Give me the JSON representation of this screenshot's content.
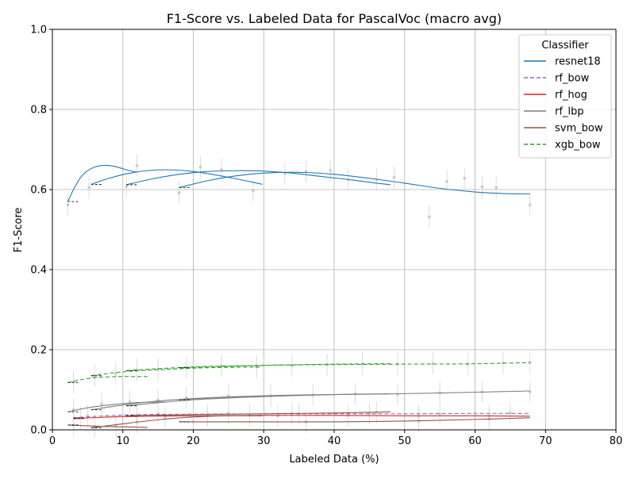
{
  "chart_data": {
    "type": "line",
    "title": "F1-Score vs. Labeled Data for PascalVoc (macro avg)",
    "xlabel": "Labeled Data (%)",
    "ylabel": "F1-Score",
    "xlim": [
      0,
      80
    ],
    "ylim": [
      0,
      1.0
    ],
    "x_ticks": [
      "0",
      "10",
      "20",
      "30",
      "40",
      "50",
      "60",
      "70",
      "80"
    ],
    "y_ticks": [
      "0.0",
      "0.2",
      "0.4",
      "0.6",
      "0.8",
      "1.0"
    ],
    "grid": true,
    "legend": {
      "title": "Classifier",
      "position": "top-right"
    },
    "series": [
      {
        "name": "resnet18",
        "color": "#1f77b4",
        "dash": "solid",
        "curves": [
          [
            [
              2.2,
              0.57
            ],
            [
              3,
              0.6
            ],
            [
              4,
              0.63
            ],
            [
              5,
              0.647
            ],
            [
              6,
              0.656
            ],
            [
              7,
              0.66
            ],
            [
              8,
              0.66
            ],
            [
              9,
              0.657
            ],
            [
              10,
              0.652
            ],
            [
              11,
              0.647
            ],
            [
              12,
              0.643
            ]
          ],
          [
            [
              5.5,
              0.613
            ],
            [
              8,
              0.628
            ],
            [
              11,
              0.641
            ],
            [
              14,
              0.648
            ],
            [
              17,
              0.649
            ],
            [
              20,
              0.645
            ],
            [
              23,
              0.637
            ],
            [
              26,
              0.627
            ],
            [
              28,
              0.62
            ],
            [
              29.8,
              0.613
            ]
          ],
          [
            [
              10.5,
              0.612
            ],
            [
              14,
              0.626
            ],
            [
              18,
              0.638
            ],
            [
              22,
              0.645
            ],
            [
              26,
              0.647
            ],
            [
              30,
              0.646
            ],
            [
              34,
              0.641
            ],
            [
              38,
              0.633
            ],
            [
              42,
              0.625
            ],
            [
              46,
              0.616
            ],
            [
              48,
              0.612
            ]
          ],
          [
            [
              18,
              0.605
            ],
            [
              22,
              0.622
            ],
            [
              26,
              0.634
            ],
            [
              30,
              0.641
            ],
            [
              35,
              0.643
            ],
            [
              40,
              0.638
            ],
            [
              45,
              0.628
            ],
            [
              50,
              0.616
            ],
            [
              55,
              0.603
            ],
            [
              60,
              0.594
            ],
            [
              64,
              0.59
            ],
            [
              67.8,
              0.589
            ]
          ]
        ],
        "scatter": [
          [
            2.2,
            0.562
          ],
          [
            5.2,
            0.605
          ],
          [
            10.5,
            0.607
          ],
          [
            12,
            0.66
          ],
          [
            18,
            0.592
          ],
          [
            21,
            0.656
          ],
          [
            24,
            0.65
          ],
          [
            28.5,
            0.597
          ],
          [
            33,
            0.64
          ],
          [
            36,
            0.645
          ],
          [
            39.5,
            0.648
          ],
          [
            42,
            0.625
          ],
          [
            46,
            0.625
          ],
          [
            48.5,
            0.63
          ],
          [
            53.5,
            0.532
          ],
          [
            56,
            0.62
          ],
          [
            58.5,
            0.628
          ],
          [
            61,
            0.607
          ],
          [
            63,
            0.605
          ],
          [
            67.8,
            0.562
          ]
        ]
      },
      {
        "name": "rf_bow",
        "color": "#9467bd",
        "dash": "dashed",
        "curves": [
          [
            [
              3,
              0.03
            ],
            [
              10,
              0.037
            ],
            [
              20,
              0.039
            ],
            [
              30,
              0.04
            ],
            [
              40,
              0.04
            ],
            [
              50,
              0.04
            ],
            [
              60,
              0.041
            ],
            [
              67.8,
              0.041
            ]
          ]
        ],
        "scatter": [
          [
            5,
            0.035
          ],
          [
            15,
            0.04
          ],
          [
            25,
            0.041
          ],
          [
            35,
            0.04
          ],
          [
            45,
            0.041
          ],
          [
            55,
            0.04
          ],
          [
            65,
            0.042
          ]
        ]
      },
      {
        "name": "rf_hog",
        "color": "#d62728",
        "dash": "solid",
        "curves": [
          [
            [
              3,
              0.028
            ],
            [
              10,
              0.033
            ],
            [
              20,
              0.035
            ],
            [
              30,
              0.036
            ],
            [
              40,
              0.036
            ],
            [
              50,
              0.035
            ],
            [
              60,
              0.035
            ],
            [
              67.8,
              0.034
            ]
          ]
        ],
        "scatter": [
          [
            4,
            0.03
          ],
          [
            12,
            0.034
          ],
          [
            22,
            0.036
          ],
          [
            32,
            0.035
          ],
          [
            42,
            0.036
          ],
          [
            52,
            0.034
          ],
          [
            62,
            0.035
          ]
        ]
      },
      {
        "name": "rf_lbp",
        "color": "#7f7f7f",
        "dash": "solid",
        "curves": [
          [
            [
              2.2,
              0.045
            ],
            [
              5,
              0.055
            ],
            [
              8,
              0.062
            ],
            [
              12,
              0.068
            ],
            [
              16,
              0.07
            ]
          ],
          [
            [
              5.5,
              0.05
            ],
            [
              10,
              0.062
            ],
            [
              15,
              0.072
            ],
            [
              20,
              0.078
            ],
            [
              25,
              0.082
            ],
            [
              29.8,
              0.083
            ]
          ],
          [
            [
              10.5,
              0.06
            ],
            [
              20,
              0.075
            ],
            [
              30,
              0.083
            ],
            [
              40,
              0.088
            ],
            [
              48,
              0.09
            ]
          ],
          [
            [
              18,
              0.075
            ],
            [
              25,
              0.082
            ],
            [
              35,
              0.087
            ],
            [
              45,
              0.089
            ],
            [
              55,
              0.092
            ],
            [
              67.8,
              0.097
            ]
          ]
        ],
        "scatter": [
          [
            3,
            0.05
          ],
          [
            7,
            0.065
          ],
          [
            11,
            0.07
          ],
          [
            15,
            0.075
          ],
          [
            19,
            0.08
          ],
          [
            25,
            0.085
          ],
          [
            31,
            0.085
          ],
          [
            37,
            0.087
          ],
          [
            43,
            0.09
          ],
          [
            49,
            0.088
          ],
          [
            55,
            0.093
          ],
          [
            61,
            0.095
          ],
          [
            67.8,
            0.095
          ]
        ]
      },
      {
        "name": "svm_bow",
        "color": "#8c564b",
        "dash": "solid",
        "curves": [
          [
            [
              2.2,
              0.012
            ],
            [
              5,
              0.01
            ],
            [
              8,
              0.008
            ],
            [
              11,
              0.007
            ],
            [
              13.5,
              0.006
            ]
          ],
          [
            [
              5.5,
              0.005
            ],
            [
              10,
              0.015
            ],
            [
              15,
              0.025
            ],
            [
              20,
              0.032
            ],
            [
              25,
              0.035
            ],
            [
              29.8,
              0.035
            ]
          ],
          [
            [
              10.5,
              0.035
            ],
            [
              20,
              0.038
            ],
            [
              30,
              0.04
            ],
            [
              40,
              0.042
            ],
            [
              48,
              0.045
            ]
          ],
          [
            [
              18,
              0.02
            ],
            [
              30,
              0.02
            ],
            [
              40,
              0.02
            ],
            [
              50,
              0.022
            ],
            [
              60,
              0.026
            ],
            [
              67.8,
              0.03
            ]
          ]
        ],
        "scatter": [
          [
            3,
            0.012
          ],
          [
            6,
            0.008
          ],
          [
            9,
            0.01
          ],
          [
            12,
            0.02
          ],
          [
            16,
            0.03
          ],
          [
            22,
            0.035
          ],
          [
            28,
            0.037
          ],
          [
            34,
            0.04
          ],
          [
            40,
            0.042
          ],
          [
            46,
            0.044
          ],
          [
            20,
            0.02
          ],
          [
            36,
            0.02
          ],
          [
            52,
            0.022
          ],
          [
            62,
            0.027
          ]
        ]
      },
      {
        "name": "xgb_bow",
        "color": "#2ca02c",
        "dash": "dashed",
        "curves": [
          [
            [
              2.2,
              0.118
            ],
            [
              4,
              0.125
            ],
            [
              6,
              0.13
            ],
            [
              9,
              0.133
            ],
            [
              12,
              0.133
            ],
            [
              13.5,
              0.133
            ]
          ],
          [
            [
              5.5,
              0.135
            ],
            [
              10,
              0.145
            ],
            [
              15,
              0.15
            ],
            [
              20,
              0.154
            ],
            [
              25,
              0.156
            ],
            [
              29.8,
              0.157
            ]
          ],
          [
            [
              10.5,
              0.148
            ],
            [
              20,
              0.157
            ],
            [
              30,
              0.161
            ],
            [
              40,
              0.164
            ],
            [
              48,
              0.165
            ]
          ],
          [
            [
              18,
              0.155
            ],
            [
              30,
              0.161
            ],
            [
              40,
              0.163
            ],
            [
              50,
              0.164
            ],
            [
              60,
              0.165
            ],
            [
              67.8,
              0.168
            ]
          ]
        ],
        "scatter": [
          [
            3,
            0.12
          ],
          [
            6,
            0.135
          ],
          [
            9,
            0.14
          ],
          [
            12,
            0.15
          ],
          [
            15,
            0.152
          ],
          [
            19,
            0.155
          ],
          [
            24,
            0.16
          ],
          [
            29,
            0.157
          ],
          [
            34,
            0.16
          ],
          [
            39,
            0.163
          ],
          [
            44,
            0.165
          ],
          [
            49,
            0.164
          ],
          [
            54,
            0.166
          ],
          [
            59,
            0.164
          ],
          [
            64,
            0.167
          ],
          [
            67.8,
            0.168
          ]
        ]
      }
    ]
  }
}
